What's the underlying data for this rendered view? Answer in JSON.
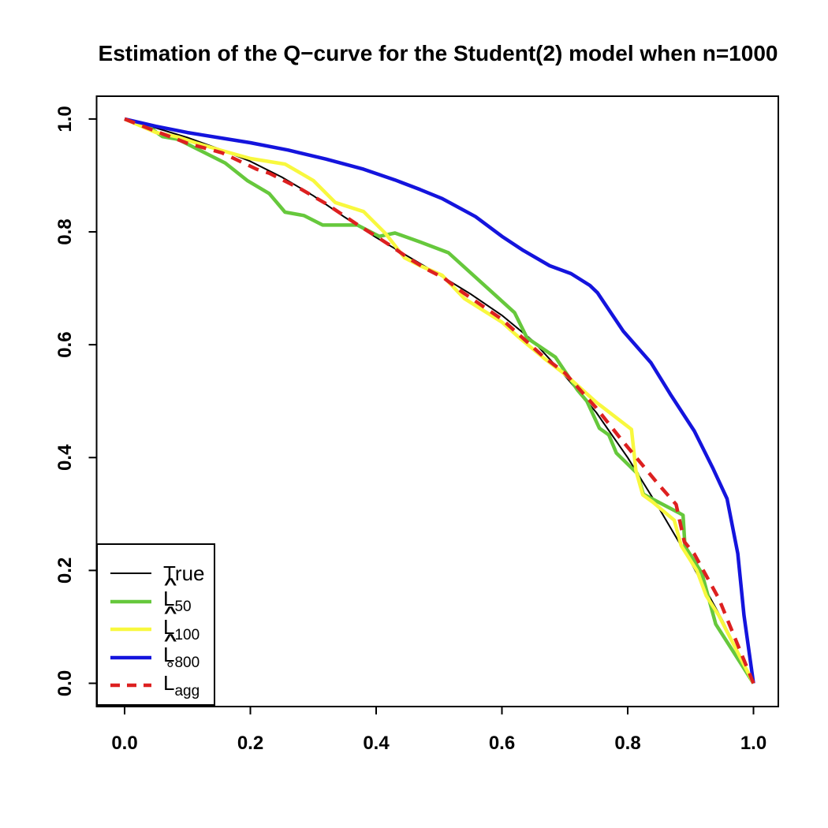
{
  "chart_data": {
    "type": "line",
    "title": "Estimation of the Q−curve for the Student(2) model when n=1000",
    "xlabel": "",
    "ylabel": "",
    "xlim": [
      0,
      1
    ],
    "ylim": [
      0,
      1
    ],
    "grid": false,
    "xticks": {
      "values": [
        0,
        0.2,
        0.4,
        0.6,
        0.8,
        1.0
      ],
      "labels": [
        "0.0",
        "0.2",
        "0.4",
        "0.6",
        "0.8",
        "1.0"
      ]
    },
    "yticks": {
      "values": [
        0,
        0.2,
        0.4,
        0.6,
        0.8,
        1.0
      ],
      "labels": [
        "0.0",
        "0.2",
        "0.4",
        "0.6",
        "0.8",
        "1.0"
      ]
    },
    "legend": {
      "position": "bottom-left",
      "entries": [
        {
          "series": "True",
          "label": "True",
          "accent": "",
          "sub": "",
          "color": "#000000",
          "width": 2,
          "dashed": false
        },
        {
          "series": "L50",
          "label": "L",
          "accent": "hat",
          "sub": "50",
          "color": "#66c83c",
          "width": 4.5,
          "dashed": false
        },
        {
          "series": "L100",
          "label": "L",
          "accent": "hat",
          "sub": "100",
          "color": "#f8f83e",
          "width": 4.5,
          "dashed": false
        },
        {
          "series": "L800",
          "label": "L",
          "accent": "hat",
          "sub": "800",
          "color": "#1414dd",
          "width": 4.5,
          "dashed": false
        },
        {
          "series": "Lagg",
          "label": "L",
          "accent": "ring",
          "sub": "agg",
          "color": "#dd2020",
          "width": 4.5,
          "dashed": true
        }
      ]
    },
    "series": [
      {
        "name": "True",
        "color": "#000000",
        "width": 2,
        "dashed": false,
        "points": [
          [
            0,
            1
          ],
          [
            0.05,
            0.984
          ],
          [
            0.1,
            0.967
          ],
          [
            0.15,
            0.947
          ],
          [
            0.2,
            0.925
          ],
          [
            0.25,
            0.897
          ],
          [
            0.3,
            0.864
          ],
          [
            0.35,
            0.826
          ],
          [
            0.4,
            0.79
          ],
          [
            0.45,
            0.757
          ],
          [
            0.5,
            0.724
          ],
          [
            0.55,
            0.69
          ],
          [
            0.6,
            0.652
          ],
          [
            0.65,
            0.606
          ],
          [
            0.7,
            0.545
          ],
          [
            0.75,
            0.48
          ],
          [
            0.8,
            0.4
          ],
          [
            0.85,
            0.31
          ],
          [
            0.9,
            0.215
          ],
          [
            0.95,
            0.113
          ],
          [
            1,
            0
          ]
        ]
      },
      {
        "name": "L50",
        "color": "#66c83c",
        "width": 4.5,
        "dashed": false,
        "points": [
          [
            0,
            1
          ],
          [
            0.04,
            0.985
          ],
          [
            0.06,
            0.969
          ],
          [
            0.085,
            0.964
          ],
          [
            0.11,
            0.95
          ],
          [
            0.135,
            0.936
          ],
          [
            0.16,
            0.922
          ],
          [
            0.195,
            0.891
          ],
          [
            0.23,
            0.868
          ],
          [
            0.255,
            0.835
          ],
          [
            0.285,
            0.829
          ],
          [
            0.315,
            0.812
          ],
          [
            0.37,
            0.812
          ],
          [
            0.405,
            0.792
          ],
          [
            0.43,
            0.798
          ],
          [
            0.47,
            0.782
          ],
          [
            0.515,
            0.763
          ],
          [
            0.62,
            0.657
          ],
          [
            0.64,
            0.612
          ],
          [
            0.685,
            0.578
          ],
          [
            0.705,
            0.545
          ],
          [
            0.72,
            0.52
          ],
          [
            0.735,
            0.5
          ],
          [
            0.755,
            0.452
          ],
          [
            0.77,
            0.44
          ],
          [
            0.782,
            0.408
          ],
          [
            0.815,
            0.372
          ],
          [
            0.825,
            0.335
          ],
          [
            0.88,
            0.303
          ],
          [
            0.888,
            0.298
          ],
          [
            0.891,
            0.243
          ],
          [
            0.918,
            0.195
          ],
          [
            0.94,
            0.105
          ],
          [
            1,
            0
          ]
        ]
      },
      {
        "name": "L100",
        "color": "#f8f83e",
        "width": 4.5,
        "dashed": false,
        "points": [
          [
            0,
            1
          ],
          [
            0.05,
            0.976
          ],
          [
            0.085,
            0.968
          ],
          [
            0.115,
            0.957
          ],
          [
            0.155,
            0.944
          ],
          [
            0.2,
            0.93
          ],
          [
            0.255,
            0.92
          ],
          [
            0.3,
            0.891
          ],
          [
            0.335,
            0.852
          ],
          [
            0.38,
            0.836
          ],
          [
            0.415,
            0.797
          ],
          [
            0.445,
            0.754
          ],
          [
            0.47,
            0.74
          ],
          [
            0.505,
            0.723
          ],
          [
            0.54,
            0.682
          ],
          [
            0.6,
            0.64
          ],
          [
            0.626,
            0.614
          ],
          [
            0.667,
            0.576
          ],
          [
            0.7,
            0.548
          ],
          [
            0.75,
            0.498
          ],
          [
            0.806,
            0.45
          ],
          [
            0.813,
            0.377
          ],
          [
            0.824,
            0.334
          ],
          [
            0.84,
            0.321
          ],
          [
            0.874,
            0.289
          ],
          [
            0.885,
            0.244
          ],
          [
            0.91,
            0.2
          ],
          [
            0.925,
            0.155
          ],
          [
            0.945,
            0.12
          ],
          [
            1,
            0
          ]
        ]
      },
      {
        "name": "L800",
        "color": "#1414dd",
        "width": 4.5,
        "dashed": false,
        "points": [
          [
            0,
            1
          ],
          [
            0.05,
            0.987
          ],
          [
            0.1,
            0.976
          ],
          [
            0.16,
            0.965
          ],
          [
            0.2,
            0.958
          ],
          [
            0.26,
            0.945
          ],
          [
            0.32,
            0.929
          ],
          [
            0.38,
            0.911
          ],
          [
            0.43,
            0.892
          ],
          [
            0.47,
            0.875
          ],
          [
            0.505,
            0.859
          ],
          [
            0.558,
            0.827
          ],
          [
            0.6,
            0.792
          ],
          [
            0.634,
            0.767
          ],
          [
            0.676,
            0.74
          ],
          [
            0.71,
            0.726
          ],
          [
            0.74,
            0.705
          ],
          [
            0.752,
            0.692
          ],
          [
            0.793,
            0.624
          ],
          [
            0.837,
            0.568
          ],
          [
            0.868,
            0.512
          ],
          [
            0.906,
            0.447
          ],
          [
            0.935,
            0.382
          ],
          [
            0.958,
            0.327
          ],
          [
            0.975,
            0.23
          ],
          [
            0.985,
            0.12
          ],
          [
            1,
            0
          ]
        ]
      },
      {
        "name": "Lagg",
        "color": "#dd2020",
        "width": 4.5,
        "dashed": true,
        "points": [
          [
            0,
            1
          ],
          [
            0.05,
            0.978
          ],
          [
            0.1,
            0.957
          ],
          [
            0.155,
            0.94
          ],
          [
            0.21,
            0.911
          ],
          [
            0.23,
            0.904
          ],
          [
            0.28,
            0.876
          ],
          [
            0.32,
            0.85
          ],
          [
            0.37,
            0.813
          ],
          [
            0.4,
            0.792
          ],
          [
            0.425,
            0.774
          ],
          [
            0.452,
            0.753
          ],
          [
            0.482,
            0.733
          ],
          [
            0.508,
            0.718
          ],
          [
            0.536,
            0.694
          ],
          [
            0.6,
            0.645
          ],
          [
            0.667,
            0.578
          ],
          [
            0.7,
            0.55
          ],
          [
            0.75,
            0.488
          ],
          [
            0.79,
            0.432
          ],
          [
            0.847,
            0.355
          ],
          [
            0.877,
            0.317
          ],
          [
            0.89,
            0.251
          ],
          [
            0.906,
            0.229
          ],
          [
            0.945,
            0.15
          ],
          [
            1,
            0
          ]
        ]
      }
    ]
  },
  "colors": {
    "background": "#ffffff",
    "axis": "#000000",
    "true_line": "#000000",
    "l50": "#66c83c",
    "l100": "#f8f83e",
    "l800": "#1414dd",
    "lagg": "#dd2020"
  }
}
